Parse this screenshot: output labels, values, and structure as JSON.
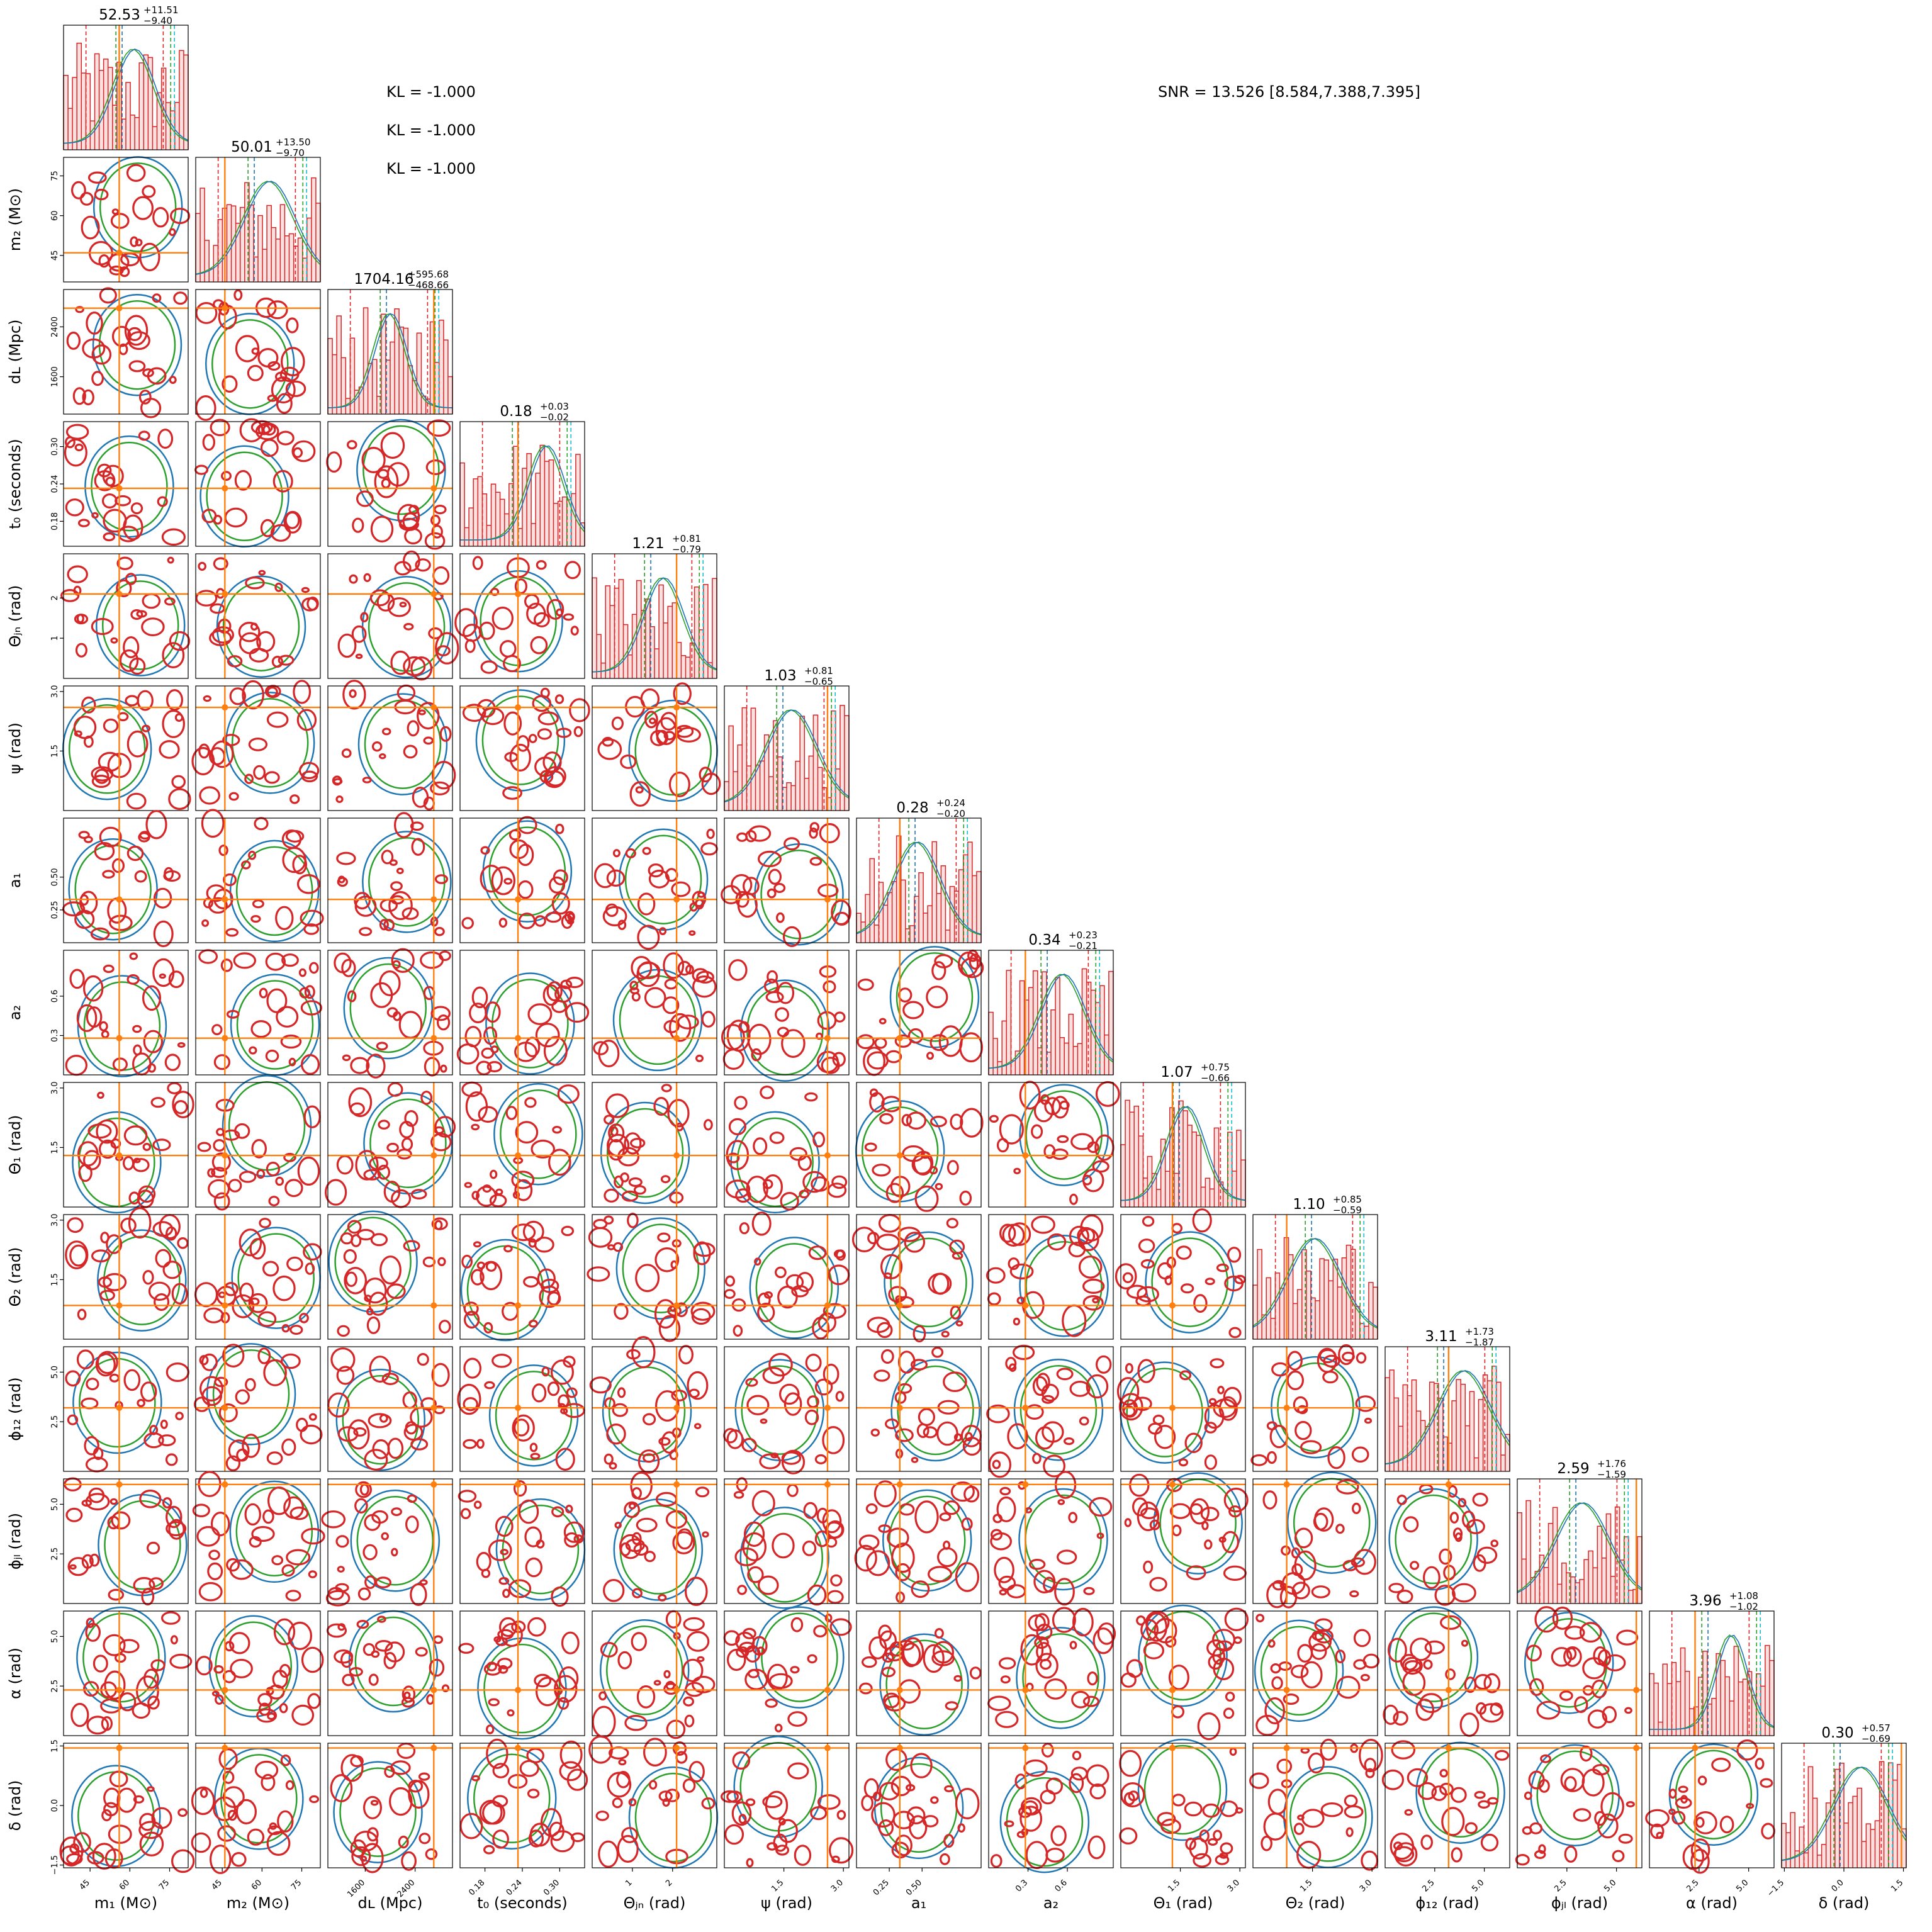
{
  "chart_data": {
    "type": "corner",
    "params": [
      {
        "label": "m₁ (M⊙)",
        "range": [
          35,
          82
        ],
        "ticks": [
          45,
          60,
          75
        ],
        "tick_labels": [
          "45",
          "60",
          "75"
        ],
        "truth": 56,
        "title_value": "52.53",
        "err_plus": "+11.51",
        "err_minus": "−9.40"
      },
      {
        "label": "m₂ (M⊙)",
        "range": [
          35,
          82
        ],
        "ticks": [
          45,
          60,
          75
        ],
        "tick_labels": [
          "45",
          "60",
          "75"
        ],
        "truth": 46,
        "title_value": "50.01",
        "err_plus": "+13.50",
        "err_minus": "−9.70"
      },
      {
        "label": "dʟ (Mpc)",
        "range": [
          1000,
          3000
        ],
        "ticks": [
          1600,
          2400
        ],
        "tick_labels": [
          "1600",
          "2400"
        ],
        "truth": 2700,
        "title_value": "1704.16",
        "err_plus": "+595.68",
        "err_minus": "−468.66"
      },
      {
        "label": "t₀ (seconds)",
        "range": [
          0.14,
          0.34
        ],
        "ticks": [
          0.18,
          0.24,
          0.3
        ],
        "tick_labels": [
          "0.18",
          "0.24",
          "0.30"
        ],
        "truth": 0.233,
        "title_value": "0.18",
        "err_plus": "+0.03",
        "err_minus": "−0.02"
      },
      {
        "label": "Θⱼₙ (rad)",
        "range": [
          0,
          3.1
        ],
        "ticks": [
          1,
          2
        ],
        "tick_labels": [
          "1",
          "2"
        ],
        "truth": 2.1,
        "title_value": "1.21",
        "err_plus": "+0.81",
        "err_minus": "−0.79"
      },
      {
        "label": "ψ (rad)",
        "range": [
          0,
          3.14
        ],
        "ticks": [
          1.5,
          3.0
        ],
        "tick_labels": [
          "1.5",
          "3.0"
        ],
        "truth": 2.6,
        "title_value": "1.03",
        "err_plus": "+0.81",
        "err_minus": "−0.65"
      },
      {
        "label": "a₁",
        "range": [
          0,
          0.95
        ],
        "ticks": [
          0.25,
          0.5
        ],
        "tick_labels": [
          "0.25",
          "0.50"
        ],
        "truth": 0.33,
        "title_value": "0.28",
        "err_plus": "+0.24",
        "err_minus": "−0.20"
      },
      {
        "label": "a₂",
        "range": [
          0,
          0.95
        ],
        "ticks": [
          0.3,
          0.6
        ],
        "tick_labels": [
          "0.3",
          "0.6"
        ],
        "truth": 0.28,
        "title_value": "0.34",
        "err_plus": "+0.23",
        "err_minus": "−0.21"
      },
      {
        "label": "Θ₁ (rad)",
        "range": [
          0,
          3.14
        ],
        "ticks": [
          1.5,
          3.0
        ],
        "tick_labels": [
          "1.5",
          "3.0"
        ],
        "truth": 1.3,
        "title_value": "1.07",
        "err_plus": "+0.75",
        "err_minus": "−0.66"
      },
      {
        "label": "Θ₂ (rad)",
        "range": [
          0,
          3.14
        ],
        "ticks": [
          1.5,
          3.0
        ],
        "tick_labels": [
          "1.5",
          "3.0"
        ],
        "truth": 0.85,
        "title_value": "1.10",
        "err_plus": "+0.85",
        "err_minus": "−0.59"
      },
      {
        "label": "ϕ₁₂ (rad)",
        "range": [
          0,
          6.28
        ],
        "ticks": [
          2.5,
          5.0
        ],
        "tick_labels": [
          "2.5",
          "5.0"
        ],
        "truth": 3.2,
        "title_value": "3.11",
        "err_plus": "+1.73",
        "err_minus": "−1.87"
      },
      {
        "label": "ϕⱼₗ (rad)",
        "range": [
          0,
          6.28
        ],
        "ticks": [
          2.5,
          5.0
        ],
        "tick_labels": [
          "2.5",
          "5.0"
        ],
        "truth": 6.0,
        "title_value": "2.59",
        "err_plus": "+1.76",
        "err_minus": "−1.59"
      },
      {
        "label": "α (rad)",
        "range": [
          0,
          6.28
        ],
        "ticks": [
          2.5,
          5.0
        ],
        "tick_labels": [
          "2.5",
          "5.0"
        ],
        "truth": 2.3,
        "title_value": "3.96",
        "err_plus": "+1.08",
        "err_minus": "−1.02"
      },
      {
        "label": "δ (rad)",
        "range": [
          -1.57,
          1.57
        ],
        "ticks": [
          -1.5,
          0.0,
          1.5
        ],
        "tick_labels": [
          "−1.5",
          "0.0",
          "1.5"
        ],
        "truth": 1.45,
        "title_value": "0.30",
        "err_plus": "+0.57",
        "err_minus": "−0.69"
      }
    ],
    "kl_lines": [
      "KL = -1.000",
      "KL = -1.000",
      "KL = -1.000"
    ],
    "snr_text": "SNR = 13.526 [8.584,7.388,7.395]",
    "colors": {
      "truth": "#ff7f0e",
      "red": "#d62728",
      "green": "#2ca02c",
      "blue": "#1f77b4",
      "teal": "#17becf",
      "pink_fill": "#f4a6a6"
    },
    "grid": false
  }
}
